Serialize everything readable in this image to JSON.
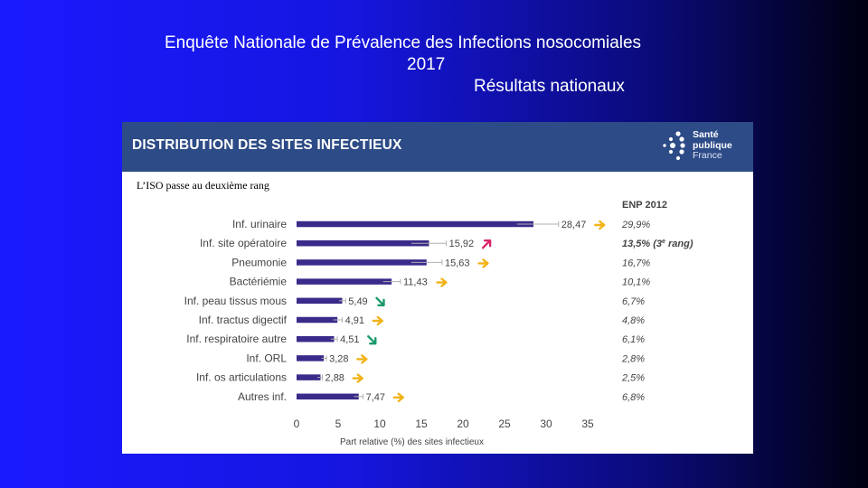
{
  "slide": {
    "title_line1": "Enquête Nationale de Prévalence des Infections nosocomiales",
    "title_line2": "2017",
    "title_line3": "Résultats nationaux"
  },
  "panel": {
    "title": "DISTRIBUTION DES SITES INFECTIEUX",
    "subtitle": "L’ISO passe au deuxième rang",
    "logo": {
      "line1": "Santé",
      "line2": "publique",
      "line3": "France"
    }
  },
  "colors": {
    "bar": "#3a2a8a",
    "errorbar": "#b0b0b0",
    "arrow_same": "#f2b318",
    "arrow_up": "#d9276a",
    "arrow_down": "#1a9a6a",
    "axis_text": "#444444"
  },
  "chart_data": {
    "type": "bar",
    "orientation": "horizontal",
    "categories": [
      "Inf. urinaire",
      "Inf. site opératoire",
      "Pneumonie",
      "Bactériémie",
      "Inf. peau tissus mous",
      "Inf. tractus digectif",
      "Inf. respiratoire autre",
      "Inf. ORL",
      "Inf. os articulations",
      "Autres inf."
    ],
    "values": [
      28.47,
      15.92,
      15.63,
      11.43,
      5.49,
      4.91,
      4.51,
      3.28,
      2.88,
      7.47
    ],
    "value_labels": [
      "28,47",
      "15,92",
      "15,63",
      "11,43",
      "5,49",
      "4,91",
      "4,51",
      "3,28",
      "2,88",
      "7,47"
    ],
    "error_upper": [
      31.5,
      18.0,
      17.5,
      12.5,
      5.9,
      5.5,
      4.9,
      3.6,
      3.1,
      8.0
    ],
    "error_lower": [
      26.5,
      13.8,
      13.8,
      10.4,
      5.1,
      4.4,
      4.1,
      3.0,
      2.5,
      6.9
    ],
    "trend": [
      "same",
      "up",
      "same",
      "same",
      "down",
      "same",
      "down",
      "same",
      "same",
      "same"
    ],
    "trend_icon_names": [
      "right-arrow-icon",
      "up-arrow-icon",
      "right-arrow-icon",
      "right-arrow-icon",
      "down-arrow-icon",
      "right-arrow-icon",
      "down-arrow-icon",
      "right-arrow-icon",
      "right-arrow-icon",
      "right-arrow-icon"
    ],
    "enp2012_header": "ENP 2012",
    "enp2012": [
      "29,9%",
      "13,5% (3",
      "16,7%",
      "10,1%",
      "6,7%",
      "4,8%",
      "6,1%",
      "2,8%",
      "2,5%",
      "6,8%"
    ],
    "enp2012_note": {
      "sup": "e",
      "after": " rang)"
    },
    "xlim": [
      0,
      35
    ],
    "xticks": [
      0,
      5,
      10,
      15,
      20,
      25,
      30,
      35
    ],
    "xlabel": "Part relative (%) des sites infectieux",
    "title": "DISTRIBUTION DES SITES INFECTIEUX"
  }
}
